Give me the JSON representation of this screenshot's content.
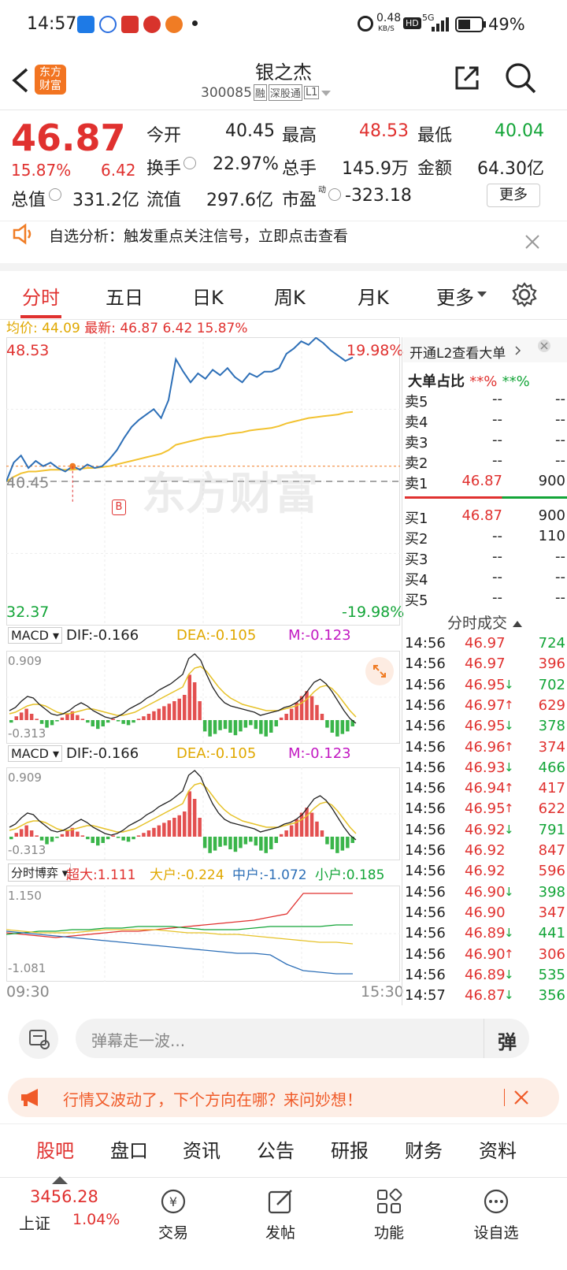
{
  "status": {
    "time": "14:57",
    "net_speed": "0.48",
    "net_unit": "KB/S",
    "hd": "HD",
    "signal": "5G",
    "battery": "49%"
  },
  "header": {
    "logo_line1": "东方",
    "logo_line2": "财富",
    "title": "银之杰",
    "code": "300085",
    "tags": [
      "融",
      "深股通",
      "L1"
    ]
  },
  "quote": {
    "price": "46.87",
    "pct": "15.87%",
    "change": "6.42",
    "open_label": "今开",
    "open": "40.45",
    "high_label": "最高",
    "high": "48.53",
    "low_label": "最低",
    "low": "40.04",
    "turnover_label": "换手",
    "turnover": "22.97%",
    "vol_label": "总手",
    "vol": "145.9万",
    "amt_label": "金额",
    "amt": "64.30亿",
    "mcap_label": "总值",
    "mcap": "331.2亿",
    "float_label": "流值",
    "float": "297.6亿",
    "pe_label": "市盈",
    "pe_sup": "动",
    "pe": "-323.18",
    "more": "更多"
  },
  "alert": {
    "text": "自选分析：触发重点关注信号，立即点击查看"
  },
  "tabs": {
    "items": [
      "分时",
      "五日",
      "日K",
      "周K",
      "月K"
    ],
    "more": "更多"
  },
  "info": {
    "avg_label": "均价:",
    "avg": "44.09",
    "latest_label": "最新:",
    "latest": "46.87",
    "change": "6.42",
    "pct": "15.87%"
  },
  "chart": {
    "top_price": "48.53",
    "top_pct": "19.98%",
    "bottom_price": "32.37",
    "bottom_pct": "-19.98%",
    "base_price": "40.45",
    "marker": "B",
    "watermark": "东方财富",
    "time_start": "09:30",
    "time_end": "15:30"
  },
  "chart_data": {
    "type": "line",
    "x_range": [
      "09:30",
      "15:30"
    ],
    "ylim": [
      32.37,
      48.53
    ],
    "base": 40.45,
    "price": [
      40.45,
      41.5,
      41.9,
      41.2,
      41.6,
      41.3,
      41.5,
      41.2,
      41.0,
      41.3,
      41.1,
      41.4,
      41.2,
      41.3,
      41.7,
      42.2,
      42.9,
      43.5,
      43.9,
      44.2,
      44.5,
      44.0,
      45.0,
      47.3,
      46.6,
      46.0,
      46.5,
      46.2,
      46.7,
      46.4,
      46.8,
      46.3,
      46.0,
      46.5,
      46.3,
      46.6,
      46.6,
      46.8,
      47.6,
      47.9,
      48.3,
      48.1,
      48.5,
      48.2,
      47.8,
      47.5,
      47.2,
      47.4
    ],
    "avg": [
      40.45,
      40.7,
      40.9,
      41.0,
      41.0,
      41.05,
      41.1,
      41.1,
      41.1,
      41.1,
      41.15,
      41.2,
      41.2,
      41.25,
      41.3,
      41.4,
      41.5,
      41.6,
      41.7,
      41.8,
      41.9,
      42.0,
      42.2,
      42.5,
      42.6,
      42.7,
      42.8,
      42.9,
      42.95,
      43.0,
      43.1,
      43.15,
      43.2,
      43.3,
      43.35,
      43.4,
      43.45,
      43.55,
      43.7,
      43.8,
      43.9,
      44.0,
      44.05,
      44.1,
      44.15,
      44.2,
      44.3,
      44.35
    ]
  },
  "macd1": {
    "sel": "MACD",
    "dif": "DIF:-0.166",
    "dea": "DEA:-0.105",
    "m": "M:-0.123",
    "top": "0.909",
    "bottom": "-0.313"
  },
  "macd2": {
    "sel": "MACD",
    "dif": "DIF:-0.166",
    "dea": "DEA:-0.105",
    "m": "M:-0.123",
    "top": "0.909",
    "bottom": "-0.313"
  },
  "flow": {
    "sel": "分时博弈",
    "super": "超大:1.111",
    "big": "大户:-0.224",
    "mid": "中户:-1.072",
    "small": "小户:0.185",
    "top": "1.150",
    "bottom": "-1.081"
  },
  "orderbook": {
    "l2_text": "开通L2查看大单",
    "big_label": "大单占比",
    "big_a": "**%",
    "big_b": "**%",
    "asks": [
      [
        "卖5",
        "--",
        "--"
      ],
      [
        "卖4",
        "--",
        "--"
      ],
      [
        "卖3",
        "--",
        "--"
      ],
      [
        "卖2",
        "--",
        "--"
      ],
      [
        "卖1",
        "46.87",
        "900"
      ]
    ],
    "bids": [
      [
        "买1",
        "46.87",
        "900"
      ],
      [
        "买2",
        "--",
        "110"
      ],
      [
        "买3",
        "--",
        "--"
      ],
      [
        "买4",
        "--",
        "--"
      ],
      [
        "买5",
        "--",
        "--"
      ]
    ]
  },
  "trades": {
    "title": "分时成交",
    "rows": [
      [
        "14:56",
        "46.97",
        "",
        "724",
        "g"
      ],
      [
        "14:56",
        "46.97",
        "",
        "396",
        "r"
      ],
      [
        "14:56",
        "46.95",
        "↓",
        "702",
        "g"
      ],
      [
        "14:56",
        "46.97",
        "↑",
        "629",
        "r"
      ],
      [
        "14:56",
        "46.95",
        "↓",
        "378",
        "g"
      ],
      [
        "14:56",
        "46.96",
        "↑",
        "374",
        "r"
      ],
      [
        "14:56",
        "46.93",
        "↓",
        "466",
        "g"
      ],
      [
        "14:56",
        "46.94",
        "↑",
        "417",
        "r"
      ],
      [
        "14:56",
        "46.95",
        "↑",
        "622",
        "r"
      ],
      [
        "14:56",
        "46.92",
        "↓",
        "791",
        "g"
      ],
      [
        "14:56",
        "46.92",
        "",
        "847",
        "r"
      ],
      [
        "14:56",
        "46.92",
        "",
        "596",
        "r"
      ],
      [
        "14:56",
        "46.90",
        "↓",
        "398",
        "g"
      ],
      [
        "14:56",
        "46.90",
        "",
        "347",
        "r"
      ],
      [
        "14:56",
        "46.89",
        "↓",
        "441",
        "g"
      ],
      [
        "14:56",
        "46.90",
        "↑",
        "306",
        "r"
      ],
      [
        "14:56",
        "46.89",
        "↓",
        "535",
        "g"
      ],
      [
        "14:57",
        "46.87",
        "↓",
        "356",
        "g"
      ]
    ]
  },
  "comment": {
    "placeholder": "弹幕走一波...",
    "btn": "弹"
  },
  "promo": {
    "text": "行情又波动了，下个方向在哪？来问妙想！"
  },
  "subtabs": [
    "股吧",
    "盘口",
    "资讯",
    "公告",
    "研报",
    "财务",
    "资料"
  ],
  "bottom": {
    "index_val": "3456.28",
    "index_name": "上证",
    "index_pct": "1.04%",
    "nav": [
      "交易",
      "发帖",
      "功能",
      "设自选"
    ]
  }
}
